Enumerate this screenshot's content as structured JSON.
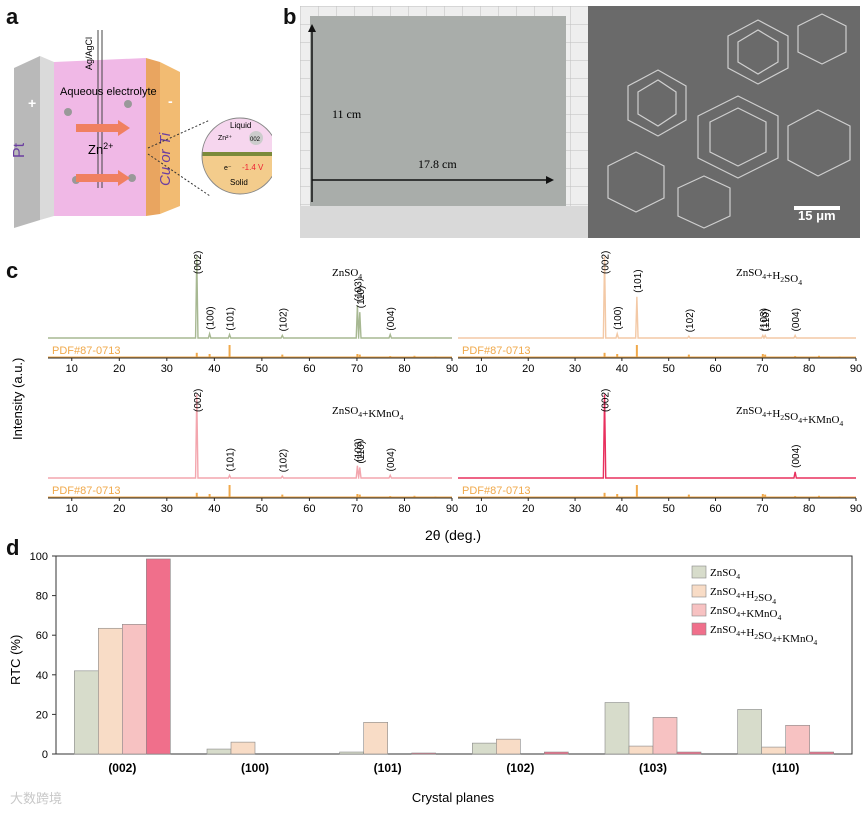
{
  "panels": {
    "a": "a",
    "b": "b",
    "c": "c",
    "d": "d"
  },
  "panel_a": {
    "ref_electrode": "Ag/AgCl",
    "electrolyte": "Aqueous electrolyte",
    "counter": "Pt",
    "working": "Cu or Ti",
    "ion": "Zn",
    "ion_charge": "2+",
    "plus": "+",
    "minus": "-",
    "inset": {
      "liquid": "Liquid",
      "solid": "Solid",
      "ion": "Zn²⁺",
      "plane": "002",
      "voltage": "-1.4 V",
      "electron": "e⁻"
    }
  },
  "panel_b": {
    "height": "11 cm",
    "width": "17.8 cm",
    "scale": "15 μm"
  },
  "watermark": "大数跨境",
  "chart_data": [
    {
      "type": "line",
      "title": "",
      "xlabel": "2θ (deg.)",
      "ylabel": "Intensity (a.u.)",
      "xlim": [
        5,
        90
      ],
      "xticks": [
        10,
        20,
        30,
        40,
        50,
        60,
        70,
        80,
        90
      ],
      "reference_label": "PDF#87-0713",
      "reference_lines": [
        {
          "x": 36.3,
          "h": 0.35
        },
        {
          "x": 39.0,
          "h": 0.25
        },
        {
          "x": 43.2,
          "h": 1.0
        },
        {
          "x": 54.3,
          "h": 0.2
        },
        {
          "x": 70.1,
          "h": 0.25
        },
        {
          "x": 70.6,
          "h": 0.2
        },
        {
          "x": 77.0,
          "h": 0.08
        },
        {
          "x": 82.1,
          "h": 0.1
        },
        {
          "x": 86.5,
          "h": 0.05
        }
      ],
      "series": [
        {
          "name": "ZnSO4",
          "color": "#a7b892",
          "peaks": [
            {
              "x": 36.3,
              "y": 0.95,
              "label": "(002)"
            },
            {
              "x": 39.0,
              "y": 0.05,
              "label": "(100)"
            },
            {
              "x": 43.2,
              "y": 0.04,
              "label": "(101)"
            },
            {
              "x": 54.3,
              "y": 0.03,
              "label": "(102)"
            },
            {
              "x": 70.1,
              "y": 0.38,
              "label": "(103)"
            },
            {
              "x": 70.6,
              "y": 0.3,
              "label": "(110)"
            },
            {
              "x": 77.0,
              "y": 0.04,
              "label": "(004)"
            }
          ]
        },
        {
          "name": "ZnSO4+H2SO4",
          "color": "#f3c9a6",
          "peaks": [
            {
              "x": 36.3,
              "y": 0.95,
              "label": "(002)"
            },
            {
              "x": 39.0,
              "y": 0.05,
              "label": "(100)"
            },
            {
              "x": 43.2,
              "y": 0.48,
              "label": "(101)"
            },
            {
              "x": 54.3,
              "y": 0.02,
              "label": "(102)"
            },
            {
              "x": 70.1,
              "y": 0.03,
              "label": "(103)"
            },
            {
              "x": 70.6,
              "y": 0.03,
              "label": "(110)"
            },
            {
              "x": 77.0,
              "y": 0.03,
              "label": "(004)"
            }
          ]
        },
        {
          "name": "ZnSO4+KMnO4",
          "color": "#f3a6ae",
          "peaks": [
            {
              "x": 36.3,
              "y": 0.95,
              "label": "(002)"
            },
            {
              "x": 43.2,
              "y": 0.03,
              "label": "(101)"
            },
            {
              "x": 54.3,
              "y": 0.02,
              "label": "(102)"
            },
            {
              "x": 70.1,
              "y": 0.14,
              "label": "(103)"
            },
            {
              "x": 70.6,
              "y": 0.12,
              "label": "(110)"
            },
            {
              "x": 77.0,
              "y": 0.03,
              "label": "(004)"
            }
          ]
        },
        {
          "name": "ZnSO4+H2SO4+KMnO4",
          "color": "#e8305e",
          "peaks": [
            {
              "x": 36.3,
              "y": 0.95,
              "label": "(002)"
            },
            {
              "x": 77.0,
              "y": 0.07,
              "label": "(004)"
            }
          ]
        }
      ]
    },
    {
      "type": "bar",
      "title": "",
      "xlabel": "Crystal planes",
      "ylabel": "RTC (%)",
      "ylim": [
        0,
        100
      ],
      "yticks": [
        0,
        20,
        40,
        60,
        80,
        100
      ],
      "categories": [
        "(002)",
        "(100)",
        "(101)",
        "(102)",
        "(103)",
        "(110)"
      ],
      "legend_position": "top-right",
      "series": [
        {
          "name": "ZnSO4",
          "color": "#d7dccb",
          "values": [
            42,
            2.5,
            1,
            5.5,
            26,
            22.5
          ]
        },
        {
          "name": "ZnSO4+H2SO4",
          "color": "#f8dcc6",
          "values": [
            63.5,
            6,
            16,
            7.5,
            4,
            3.5
          ]
        },
        {
          "name": "ZnSO4+KMnO4",
          "color": "#f7c2c2",
          "values": [
            65.5,
            0,
            0,
            0,
            18.5,
            14.5
          ]
        },
        {
          "name": "ZnSO4+H2SO4+KMnO4",
          "color": "#f06f8b",
          "values": [
            98.5,
            0,
            0.5,
            1,
            1,
            1
          ]
        }
      ]
    }
  ]
}
